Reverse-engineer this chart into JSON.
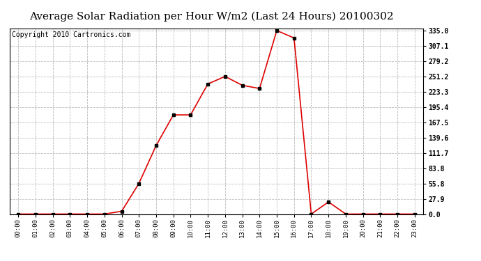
{
  "title": "Average Solar Radiation per Hour W/m2 (Last 24 Hours) 20100302",
  "copyright": "Copyright 2010 Cartronics.com",
  "hours": [
    "00:00",
    "01:00",
    "02:00",
    "03:00",
    "04:00",
    "05:00",
    "06:00",
    "07:00",
    "08:00",
    "09:00",
    "10:00",
    "11:00",
    "12:00",
    "13:00",
    "14:00",
    "15:00",
    "16:00",
    "17:00",
    "18:00",
    "19:00",
    "20:00",
    "21:00",
    "22:00",
    "23:00"
  ],
  "values": [
    0.0,
    0.0,
    0.0,
    0.0,
    0.0,
    0.0,
    5.0,
    55.8,
    125.0,
    181.0,
    181.0,
    237.5,
    251.2,
    235.0,
    229.2,
    335.0,
    321.5,
    0.0,
    22.0,
    0.0,
    0.0,
    0.0,
    0.0,
    0.0
  ],
  "line_color": "#dd0000",
  "marker_color": "#000000",
  "bg_color": "#ffffff",
  "grid_color": "#bbbbbb",
  "yticks": [
    0.0,
    27.9,
    55.8,
    83.8,
    111.7,
    139.6,
    167.5,
    195.4,
    223.3,
    251.2,
    279.2,
    307.1,
    335.0
  ],
  "ymax": 335.0,
  "ymin": 0.0,
  "title_fontsize": 11,
  "copyright_fontsize": 7
}
